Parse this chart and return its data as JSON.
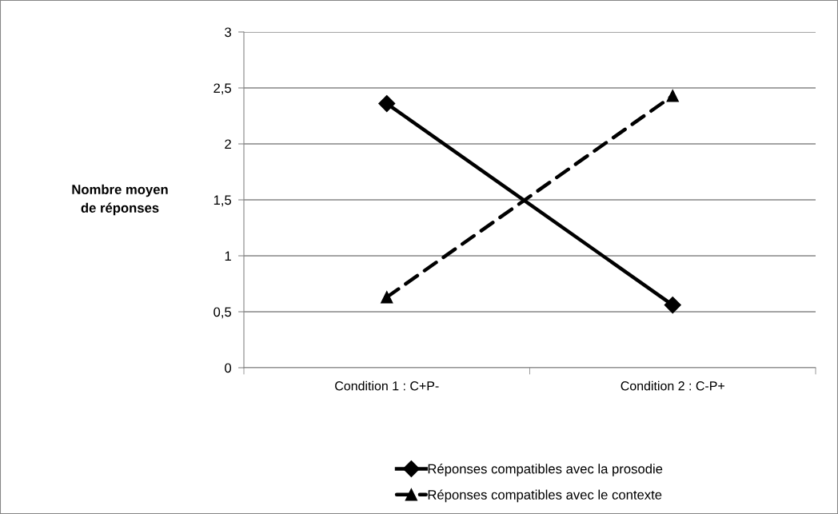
{
  "chart_data": {
    "type": "line",
    "ylabel": "Nombre moyen\nde réponses",
    "categories": [
      "Condition 1 : C+P-",
      "Condition 2 : C-P+"
    ],
    "series": [
      {
        "name": "Réponses compatibles avec la prosodie",
        "color": "#000000",
        "values": [
          2.36,
          0.56
        ],
        "marker": "diamond",
        "line_style": "solid"
      },
      {
        "name": "Réponses compatibles avec le contexte",
        "color": "#000000",
        "values": [
          0.63,
          2.43
        ],
        "marker": "triangle",
        "line_style": "dashed"
      }
    ],
    "ylim": [
      0,
      3
    ],
    "yticks": [
      0,
      {
        "value": 0.5,
        "label": "0,5"
      },
      1,
      {
        "value": 1.5,
        "label": "1,5"
      },
      2,
      {
        "value": 2.5,
        "label": "2,5"
      },
      3
    ],
    "grid": "y",
    "legend": "bottom"
  }
}
